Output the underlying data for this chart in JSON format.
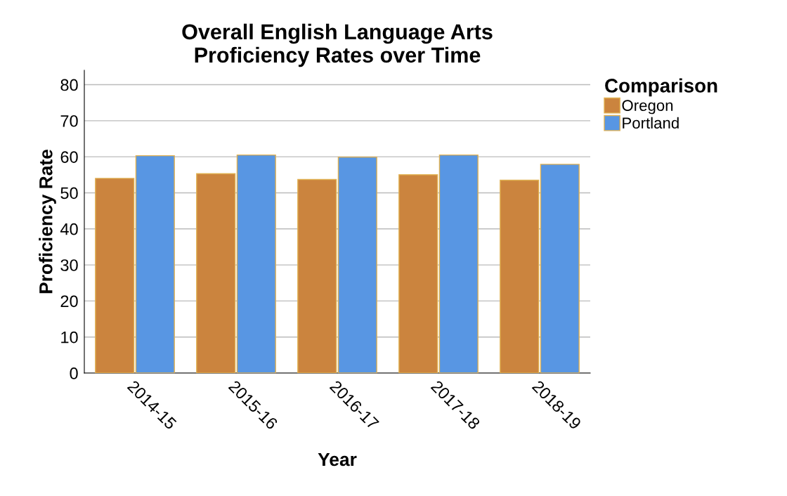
{
  "chart_data": {
    "type": "bar",
    "title": "Overall English Language Arts\nProficiency Rates over Time",
    "xlabel": "Year",
    "ylabel": "Proficiency Rate",
    "legend_title": "Comparison",
    "categories": [
      "2014-15",
      "2015-16",
      "2016-17",
      "2017-18",
      "2018-19"
    ],
    "series": [
      {
        "name": "Oregon",
        "color": "#cb843e",
        "values": [
          54.0,
          55.3,
          53.7,
          55.0,
          53.5
        ]
      },
      {
        "name": "Portland",
        "color": "#5896e3",
        "values": [
          60.3,
          60.5,
          59.9,
          60.5,
          57.9
        ]
      }
    ],
    "ylim": [
      0,
      84
    ],
    "yticks": [
      0,
      10,
      20,
      30,
      40,
      50,
      60,
      70,
      80
    ],
    "grid": "y",
    "legend": "top right"
  }
}
